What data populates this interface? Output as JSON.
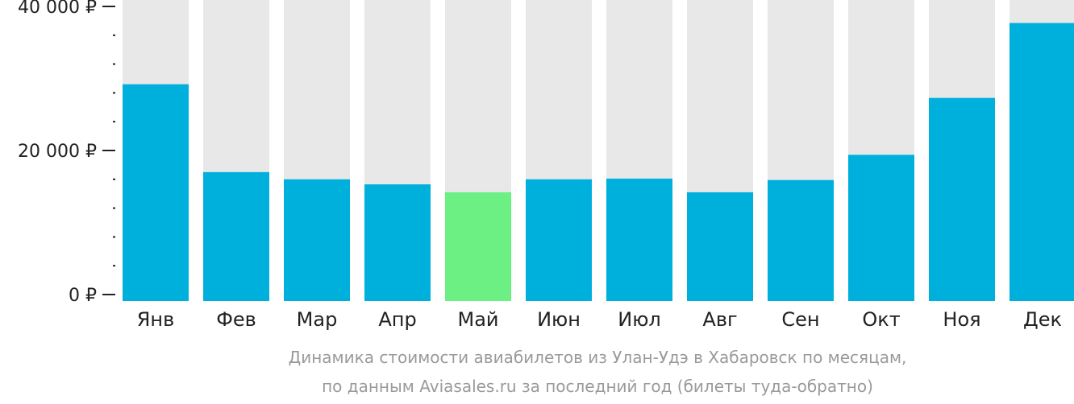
{
  "chart_data": {
    "type": "bar",
    "categories": [
      "Янв",
      "Фев",
      "Мар",
      "Апр",
      "Май",
      "Июн",
      "Июл",
      "Авг",
      "Сен",
      "Окт",
      "Ноя",
      "Дек"
    ],
    "values": [
      29200,
      17000,
      16000,
      15300,
      14200,
      16000,
      16100,
      14200,
      15900,
      19400,
      27300,
      37700
    ],
    "highlight_index": 4,
    "ylim": [
      0,
      40000
    ],
    "yticks": [
      {
        "value": 0,
        "label": "0 ₽"
      },
      {
        "value": 20000,
        "label": "20 000 ₽"
      },
      {
        "value": 40000,
        "label": "40 000 ₽"
      }
    ],
    "minor_tick_step": 4000,
    "background_bars": true,
    "grid": false,
    "legend": "none",
    "title": "",
    "xlabel": "",
    "ylabel": "",
    "caption": [
      "Динамика стоимости авиабилетов из Улан-Удэ в Хабаровск по месяцам,",
      "по данным Aviasales.ru за последний год (билеты туда-обратно)"
    ],
    "colors": {
      "bar": "#00b0dc",
      "highlight": "#6cf083",
      "background": "#e8e8e8",
      "axis": "#222222",
      "caption": "#9a9a9a"
    }
  }
}
